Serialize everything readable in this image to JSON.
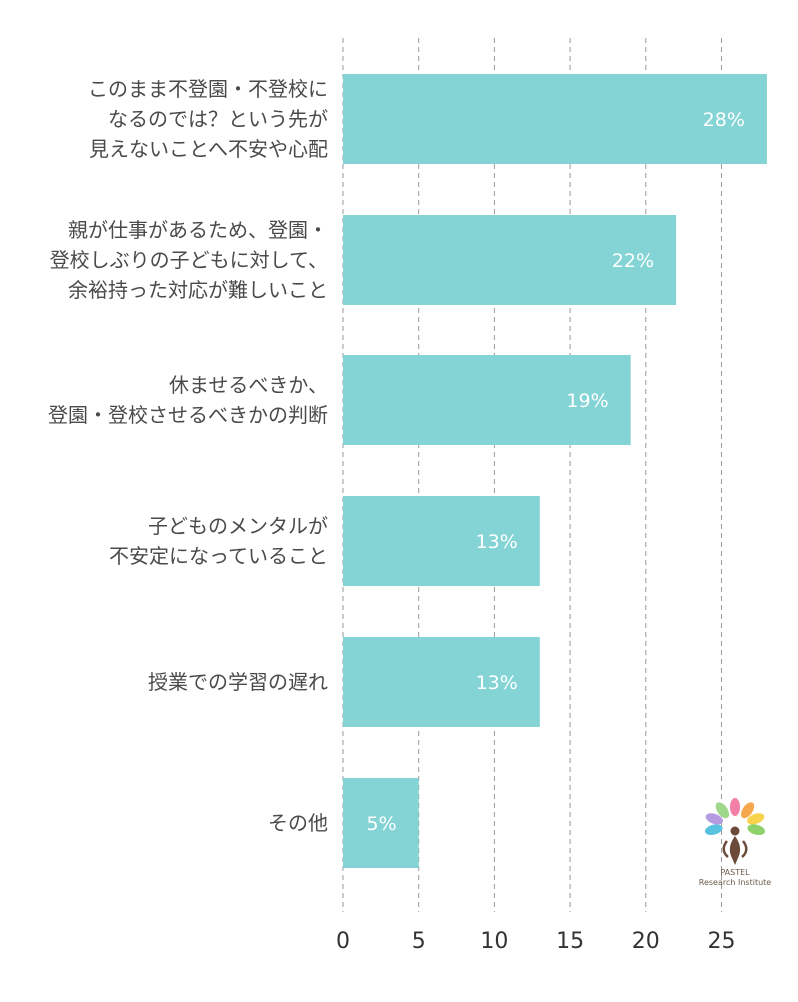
{
  "chart_data": {
    "type": "bar",
    "orientation": "horizontal",
    "categories": [
      [
        "このまま不登園・不登校に",
        "なるのでは？という先が",
        "見えないことへ不安や心配"
      ],
      [
        "親が仕事があるため、登園・",
        "登校しぶりの子どもに対して、",
        "余裕持った対応が難しいこと"
      ],
      [
        "休ませるべきか、",
        "登園・登校させるべきかの判断"
      ],
      [
        "子どものメンタルが",
        "不安定になっていること"
      ],
      [
        "授業での学習の遅れ"
      ],
      [
        "その他"
      ]
    ],
    "values": [
      28,
      22,
      19,
      13,
      13,
      5
    ],
    "value_labels": [
      "28%",
      "22%",
      "19%",
      "13%",
      "13%",
      "5%"
    ],
    "xlim": [
      0,
      28
    ],
    "xticks": [
      0,
      5,
      10,
      15,
      20,
      25
    ],
    "grid": true,
    "bar_color": "#84d4d6"
  },
  "logo": {
    "line1": "PASTEL",
    "line2": "Research Institute",
    "petal_colors": [
      "#f27fa5",
      "#f6a64d",
      "#f7d24a",
      "#8fd16a",
      "#58c3e0",
      "#b59be0",
      "#f49bbf",
      "#9ed88a"
    ]
  }
}
